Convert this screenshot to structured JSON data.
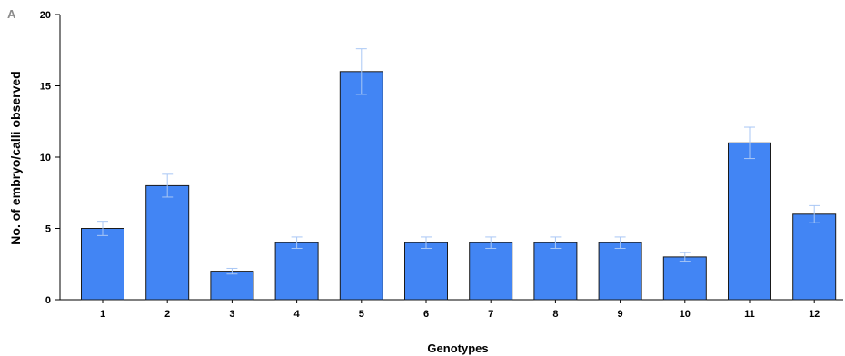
{
  "panel_label": "A",
  "chart_data": {
    "type": "bar",
    "categories": [
      "1",
      "2",
      "3",
      "4",
      "5",
      "6",
      "7",
      "8",
      "9",
      "10",
      "11",
      "12"
    ],
    "values": [
      5,
      8,
      2,
      4,
      16,
      4,
      4,
      4,
      4,
      3,
      11,
      6
    ],
    "errors": [
      0.5,
      0.8,
      0.2,
      0.4,
      1.6,
      0.4,
      0.4,
      0.4,
      0.4,
      0.3,
      1.1,
      0.6
    ],
    "xlabel": "Genotypes",
    "ylabel": "No. of embryo/calli observed",
    "ylim": [
      0,
      20
    ],
    "yticks": [
      0,
      5,
      10,
      15,
      20
    ],
    "grid": false,
    "colors": {
      "bar": "#4285f4",
      "bar_stroke": "#1a1a1a",
      "error_bar": "#a9c7f5",
      "axis": "#000000"
    }
  }
}
